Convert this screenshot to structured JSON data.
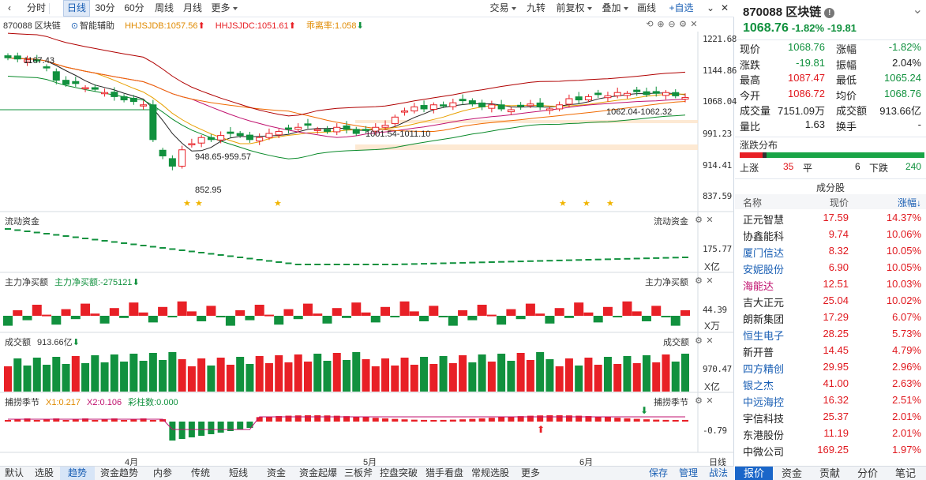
{
  "toolbar": {
    "tabs": [
      "分时",
      "日线",
      "30分",
      "60分",
      "周线",
      "月线",
      "更多"
    ],
    "active_tab": "日线",
    "right": [
      "交易",
      "九转",
      "前复权",
      "叠加",
      "画线",
      "+自选"
    ]
  },
  "indicator_line": {
    "name": "870088 区块链",
    "assist": "智能辅助",
    "hhjsjdb": "HHJSJDB:1057.56",
    "hhjsjdc": "HHJSJDC:1051.61",
    "gaolilv": "乖离率:1.058"
  },
  "main_chart": {
    "y_labels": [
      "1221.68",
      "1144.86",
      "1068.04",
      "991.23",
      "914.41",
      "837.59"
    ],
    "annotations": [
      "1167.43",
      "948.65-959.57",
      "852.95",
      "1001.54-1011.10",
      "1062.04-1062.32"
    ],
    "colors": {
      "up": "#e82026",
      "down": "#11913e"
    }
  },
  "panels": {
    "flow": {
      "title": "流动资金",
      "right_title": "流动资金",
      "axis": "175.77",
      "unit": "X亿"
    },
    "net": {
      "title": "主力净买额",
      "value": "主力净买额:-275121",
      "right_title": "主力净买额",
      "axis": "44.39",
      "unit": "X万"
    },
    "volume": {
      "title": "成交额",
      "value": "913.66亿",
      "right_title": "成交额",
      "axis": "970.47",
      "unit": "X亿"
    },
    "season": {
      "title": "捕捞季节",
      "x1": "X1:0.217",
      "x2": "X2:0.106",
      "bars": "彩柱数:0.000",
      "right_title": "捕捞季节",
      "axis": "-0.79"
    }
  },
  "months": [
    "4月",
    "5月",
    "6月"
  ],
  "period": "日线",
  "bottom_tabs": [
    "默认",
    "选股",
    "趋势",
    "资金趋势",
    "内参",
    "传统",
    "短线",
    "资金",
    "资金起爆",
    "三板斧",
    "控盘突破",
    "猎手看盘",
    "常规选股",
    "更多"
  ],
  "bottom_active": "趋势",
  "bottom_right": [
    "保存",
    "管理",
    "战法"
  ],
  "quote": {
    "title": "870088 区块链",
    "price": "1068.76",
    "change_pct": "-1.82%",
    "change": "-19.81",
    "rows": [
      [
        "现价",
        "1068.76",
        "涨幅",
        "-1.82%"
      ],
      [
        "涨跌",
        "-19.81",
        "振幅",
        "2.04%"
      ],
      [
        "最高",
        "1087.47",
        "最低",
        "1065.24"
      ],
      [
        "今开",
        "1086.72",
        "均价",
        "1068.76"
      ],
      [
        "成交量",
        "7151.09万",
        "成交额",
        "913.66亿"
      ],
      [
        "量比",
        "1.63",
        "换手",
        "-"
      ]
    ],
    "dist_title": "涨跌分布",
    "up_label": "上涨",
    "up": "35",
    "flat_label": "平",
    "flat": "6",
    "down_label": "下跌",
    "down": "240",
    "components_title": "成分股",
    "cols": [
      "名称",
      "现价",
      "涨幅↓"
    ],
    "stocks": [
      {
        "name": "正元智慧",
        "price": "17.59",
        "chg": "14.37%",
        "color": "#222"
      },
      {
        "name": "协鑫能科",
        "price": "9.74",
        "chg": "10.06%",
        "color": "#222"
      },
      {
        "name": "厦门信达",
        "price": "8.32",
        "chg": "10.05%",
        "color": "#1a5fb4"
      },
      {
        "name": "安妮股份",
        "price": "6.90",
        "chg": "10.05%",
        "color": "#1a5fb4"
      },
      {
        "name": "海能达",
        "price": "12.51",
        "chg": "10.03%",
        "color": "#c0126f"
      },
      {
        "name": "吉大正元",
        "price": "25.04",
        "chg": "10.02%",
        "color": "#222"
      },
      {
        "name": "朗新集团",
        "price": "17.29",
        "chg": "6.07%",
        "color": "#222"
      },
      {
        "name": "恒生电子",
        "price": "28.25",
        "chg": "5.73%",
        "color": "#1a5fb4"
      },
      {
        "name": "新开普",
        "price": "14.45",
        "chg": "4.79%",
        "color": "#222"
      },
      {
        "name": "四方精创",
        "price": "29.95",
        "chg": "2.96%",
        "color": "#1a5fb4"
      },
      {
        "name": "银之杰",
        "price": "41.00",
        "chg": "2.63%",
        "color": "#1a5fb4"
      },
      {
        "name": "中远海控",
        "price": "16.32",
        "chg": "2.51%",
        "color": "#1a5fb4"
      },
      {
        "name": "宇信科技",
        "price": "25.37",
        "chg": "2.01%",
        "color": "#222"
      },
      {
        "name": "东港股份",
        "price": "11.19",
        "chg": "2.01%",
        "color": "#222"
      },
      {
        "name": "中微公司",
        "price": "169.25",
        "chg": "1.97%",
        "color": "#222"
      }
    ],
    "tabs": [
      "报价",
      "资金",
      "贡献",
      "分价",
      "笔记"
    ],
    "active": "报价"
  }
}
